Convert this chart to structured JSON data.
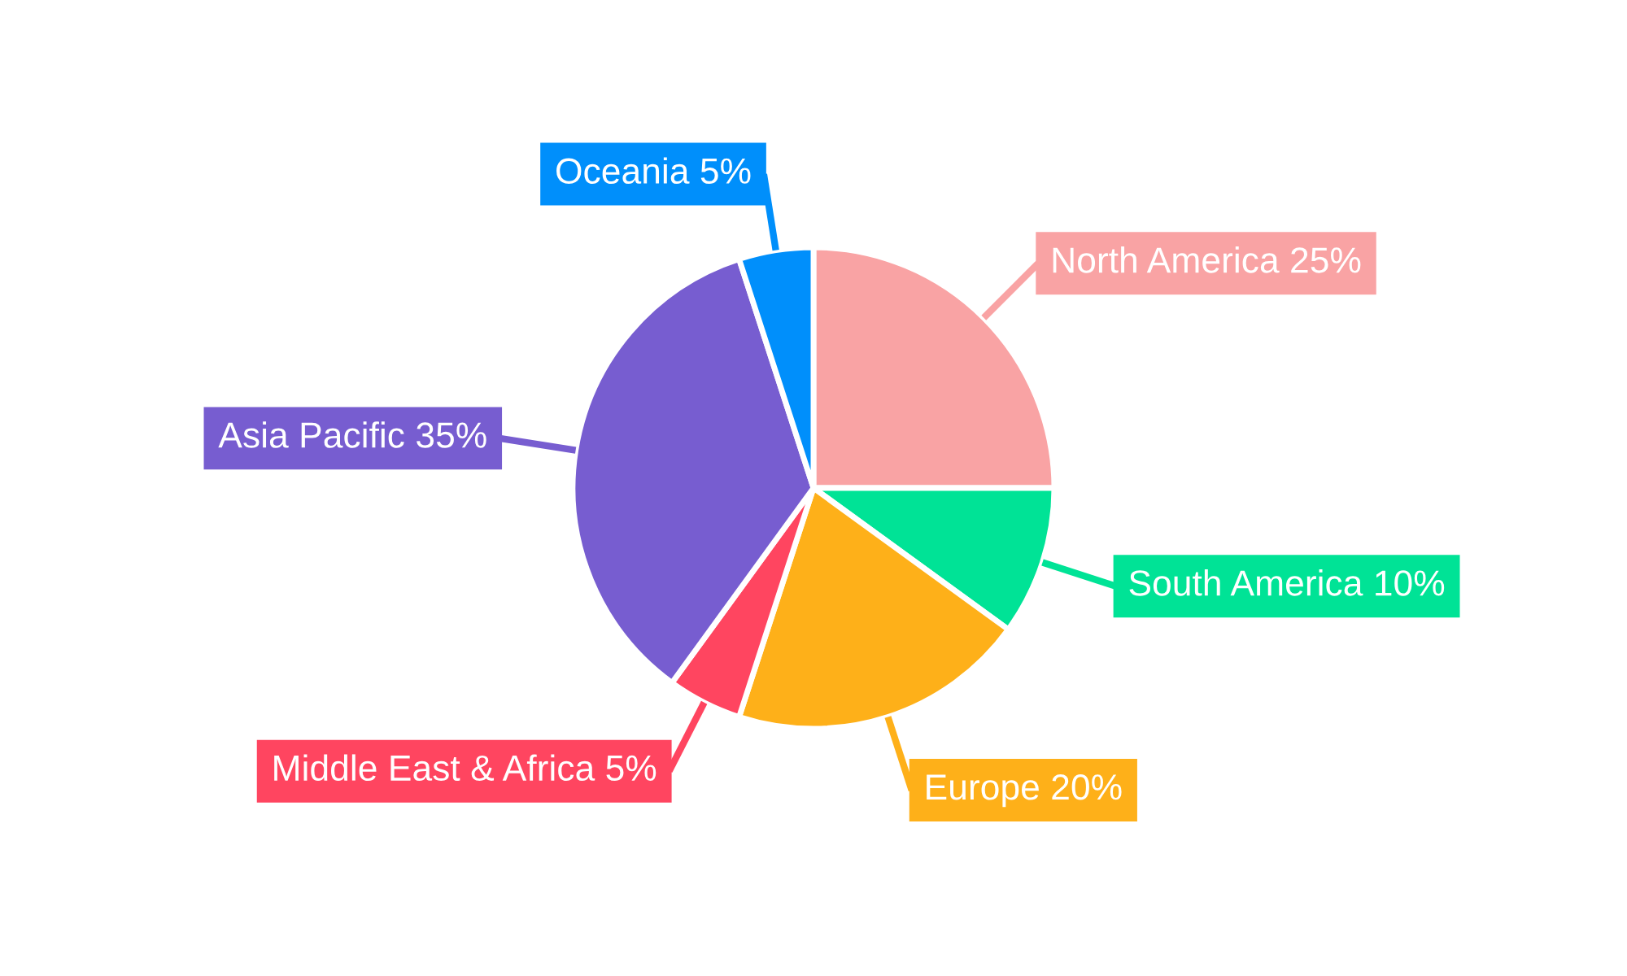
{
  "chart_data": {
    "type": "pie",
    "categories": [
      "North America",
      "South America",
      "Europe",
      "Middle East & Africa",
      "Asia Pacific",
      "Oceania"
    ],
    "values": [
      25,
      10,
      20,
      5,
      35,
      5
    ],
    "value_labels": [
      "25%",
      "10%",
      "20%",
      "5%",
      "35%",
      "5%"
    ],
    "colors": [
      "#f9a3a4",
      "#00e396",
      "#feb019",
      "#ff4560",
      "#775dd0",
      "#008ffb"
    ],
    "legend": false
  }
}
